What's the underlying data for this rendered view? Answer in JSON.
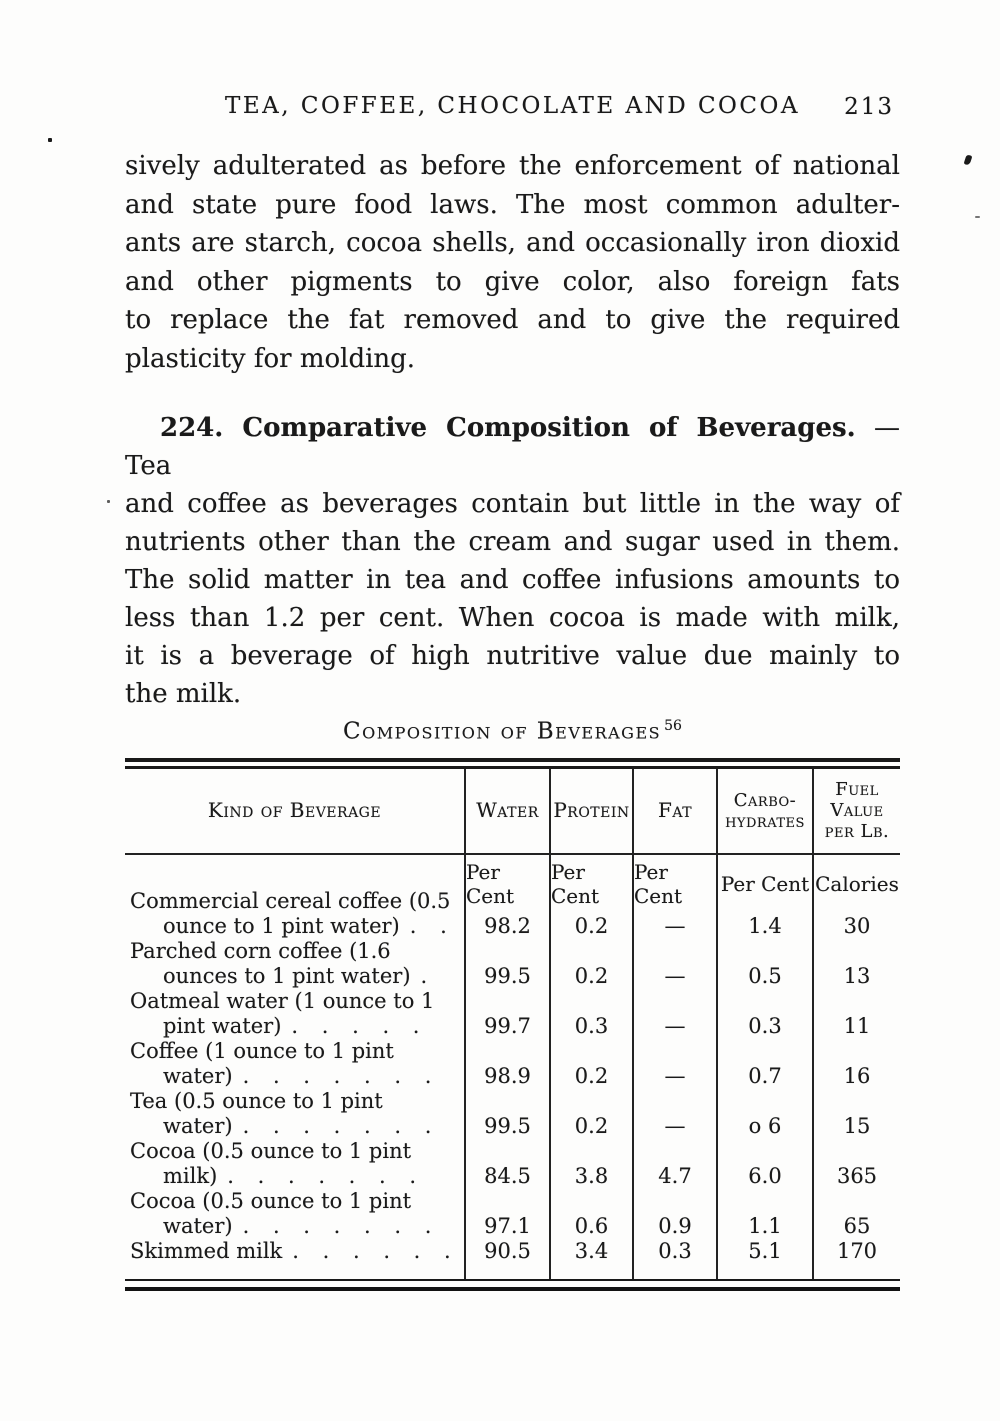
{
  "header": {
    "title": "TEA, COFFEE, CHOCOLATE AND COCOA",
    "page_number": "213"
  },
  "para1": {
    "lines": [
      "sively adulterated as before the enforcement of national",
      "and state pure food laws.  The most common adulter-",
      "ants are starch, cocoa shells, and occasionally iron dioxid",
      "and other pigments to give color, also foreign fats",
      "to replace the fat removed and to give the required",
      "plasticity for molding."
    ]
  },
  "section": {
    "heading_bold": "224. Comparative Composition of Beverages.",
    "heading_rest": " — Tea",
    "lines": [
      "and coffee as beverages contain but little in the way of",
      "nutrients other than the cream and sugar used in them.",
      "The solid matter in tea and coffee infusions amounts to",
      "less than 1.2 per cent.  When cocoa is made with milk,",
      "it is a beverage of high nutritive value due mainly to",
      "the milk."
    ]
  },
  "caption": {
    "text": "Composition of Beverages",
    "sup": "56"
  },
  "table": {
    "columns": [
      [
        "Kind of Beverage"
      ],
      [
        "Water"
      ],
      [
        "Protein"
      ],
      [
        "Fat"
      ],
      [
        "Carbo-",
        "hydrates"
      ],
      [
        "Fuel",
        "Value",
        "per Lb."
      ]
    ],
    "subheaders": [
      "Per Cent",
      "Per Cent",
      "Per Cent",
      "Per Cent",
      "Calories"
    ],
    "rows": [
      {
        "line1": "Commercial cereal coffee (0.5",
        "line1_dots": "",
        "line2": "ounce to 1 pint water)",
        "line2_dots": ". .",
        "water": "98.2",
        "protein": "0.2",
        "fat": "—",
        "carbo": "1.4",
        "fuel": "30"
      },
      {
        "line1": "Parched corn coffee (1.6",
        "line1_dots": "",
        "line2": "ounces to 1 pint water)",
        "line2_dots": ".",
        "water": "99.5",
        "protein": "0.2",
        "fat": "—",
        "carbo": "0.5",
        "fuel": "13"
      },
      {
        "line1": "Oatmeal water (1 ounce to 1",
        "line1_dots": "",
        "line2": "pint water)",
        "line2_dots": ". . . . .",
        "water": "99.7",
        "protein": "0.3",
        "fat": "—",
        "carbo": "0.3",
        "fuel": "11"
      },
      {
        "line1": "Coffee (1 ounce to 1 pint",
        "line1_dots": "",
        "line2": "water)",
        "line2_dots": ". . . . . . .",
        "water": "98.9",
        "protein": "0.2",
        "fat": "—",
        "carbo": "0.7",
        "fuel": "16"
      },
      {
        "line1": "Tea (0.5 ounce to 1 pint",
        "line1_dots": "",
        "line2": "water)",
        "line2_dots": ". . . . . . .",
        "water": "99.5",
        "protein": "0.2",
        "fat": "—",
        "carbo": "o 6",
        "fuel": "15"
      },
      {
        "line1": "Cocoa (0.5 ounce to 1 pint",
        "line1_dots": "",
        "line2": "milk)",
        "line2_dots": ". . . . . . .",
        "water": "84.5",
        "protein": "3.8",
        "fat": "4.7",
        "carbo": "6.0",
        "fuel": "365"
      },
      {
        "line1": "Cocoa (0.5 ounce to 1 pint",
        "line1_dots": "",
        "line2": "water)",
        "line2_dots": ". . . . . . .",
        "water": "97.1",
        "protein": "0.6",
        "fat": "0.9",
        "carbo": "1.1",
        "fuel": "65"
      },
      {
        "line1": "Skimmed milk",
        "line1_dots": ". . . . . .",
        "line2": "",
        "line2_dots": "",
        "water": "90.5",
        "protein": "3.4",
        "fat": "0.3",
        "carbo": "5.1",
        "fuel": "170"
      }
    ]
  }
}
